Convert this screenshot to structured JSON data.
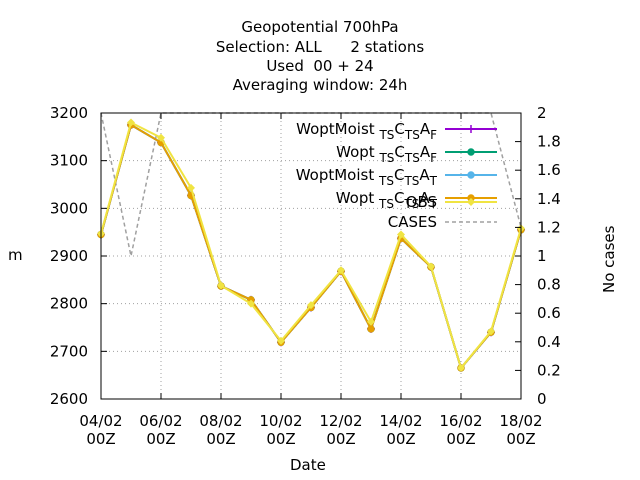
{
  "title": {
    "line1": "Geopotential 700hPa",
    "line2": "Selection: ALL      2 stations",
    "line3": "Used  00 + 24",
    "line4": "Averaging window: 24h"
  },
  "colors": {
    "woptmoist_f": "#9400d3",
    "wopt_f": "#009e73",
    "woptmoist_t": "#56b4e9",
    "wopt_t": "#e69f00",
    "obs": "#f0e442",
    "cases": "#a0a0a0",
    "grid": "#a0a0a0"
  },
  "chart_data": {
    "type": "line",
    "xlabel": "Date",
    "ylabel": "m",
    "y2label": "No cases",
    "ylim": [
      2600,
      3200
    ],
    "y2lim": [
      0,
      2
    ],
    "x": [
      "04/02 00Z",
      "05/02 00Z",
      "06/02 00Z",
      "07/02 00Z",
      "08/02 00Z",
      "09/02 00Z",
      "10/02 00Z",
      "11/02 00Z",
      "12/02 00Z",
      "13/02 00Z",
      "14/02 00Z",
      "15/02 00Z",
      "16/02 00Z",
      "17/02 00Z",
      "18/02 00Z"
    ],
    "xticks": [
      {
        "line1": "04/02",
        "line2": "00Z"
      },
      {
        "line1": "06/02",
        "line2": "00Z"
      },
      {
        "line1": "08/02",
        "line2": "00Z"
      },
      {
        "line1": "10/02",
        "line2": "00Z"
      },
      {
        "line1": "12/02",
        "line2": "00Z"
      },
      {
        "line1": "14/02",
        "line2": "00Z"
      },
      {
        "line1": "16/02",
        "line2": "00Z"
      },
      {
        "line1": "18/02",
        "line2": "00Z"
      }
    ],
    "yticks": [
      "2600",
      "2700",
      "2800",
      "2900",
      "3000",
      "3100",
      "3200"
    ],
    "y2ticks": [
      "0",
      "0.2",
      "0.4",
      "0.6",
      "0.8",
      "1",
      "1.2",
      "1.4",
      "1.6",
      "1.8",
      "2"
    ],
    "grid": true,
    "legend_position": "top-right",
    "series": [
      {
        "name": "WoptMoist",
        "sub1": "TS",
        "sub2": "TS",
        "sub3": "F",
        "values": [
          2945,
          3175,
          3138,
          3027,
          2837,
          2808,
          2719,
          2792,
          2868,
          2747,
          2937,
          2877,
          2665,
          2740,
          2955
        ]
      },
      {
        "name": "Wopt",
        "sub1": "TS",
        "sub2": "TS",
        "sub3": "F",
        "values": [
          2945,
          3175,
          3138,
          3027,
          2837,
          2808,
          2719,
          2792,
          2868,
          2747,
          2937,
          2877,
          2665,
          2740,
          2955
        ]
      },
      {
        "name": "WoptMoist",
        "sub1": "TS",
        "sub2": "TS",
        "sub3": "T",
        "values": [
          2945,
          3175,
          3138,
          3027,
          2837,
          2808,
          2719,
          2792,
          2868,
          2747,
          2937,
          2877,
          2665,
          2740,
          2955
        ]
      },
      {
        "name": "Wopt",
        "sub1": "TS",
        "sub2": "TS",
        "sub3": "T",
        "values": [
          2945,
          3175,
          3138,
          3027,
          2837,
          2808,
          2719,
          2792,
          2868,
          2747,
          2937,
          2877,
          2665,
          2740,
          2955
        ]
      },
      {
        "name": "OBS",
        "values": [
          2947,
          3180,
          3148,
          3043,
          2838,
          2800,
          2722,
          2797,
          2870,
          2762,
          2945,
          2878,
          2665,
          2742,
          2958
        ]
      }
    ],
    "cases": {
      "name": "CASES",
      "values": [
        2,
        1,
        2,
        2,
        2,
        2,
        2,
        2,
        2,
        2,
        2,
        2,
        2,
        2,
        1.2
      ]
    }
  }
}
